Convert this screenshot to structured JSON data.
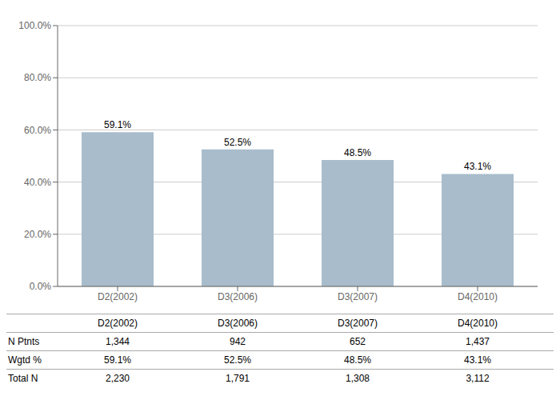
{
  "chart_data": {
    "type": "bar",
    "categories": [
      "D2(2002)",
      "D3(2006)",
      "D3(2007)",
      "D4(2010)"
    ],
    "values": [
      59.1,
      52.5,
      48.5,
      43.1
    ],
    "value_labels": [
      "59.1%",
      "52.5%",
      "48.5%",
      "43.1%"
    ],
    "data_labels": true,
    "color": "#a8bccb",
    "ylim": [
      0,
      100
    ],
    "yticks": [
      {
        "value": 0,
        "label": "0.0%"
      },
      {
        "value": 20,
        "label": "20.0%"
      },
      {
        "value": 40,
        "label": "40.0%"
      },
      {
        "value": 60,
        "label": "60.0%"
      },
      {
        "value": 80,
        "label": "80.0%"
      },
      {
        "value": 100,
        "label": "100.0%"
      }
    ],
    "grid": true,
    "table": [
      {
        "name": "N Ptnts",
        "values": [
          1344,
          942,
          652,
          1437
        ],
        "value_labels": [
          "1,344",
          "942",
          "652",
          "1,437"
        ]
      },
      {
        "name": "Wgtd %",
        "values": [
          59.1,
          52.5,
          48.5,
          43.1
        ],
        "value_labels": [
          "59.1%",
          "52.5%",
          "48.5%",
          "43.1%"
        ]
      },
      {
        "name": "Total N",
        "values": [
          2230,
          1791,
          1308,
          3112
        ],
        "value_labels": [
          "2,230",
          "1,791",
          "1,308",
          "3,112"
        ]
      }
    ]
  }
}
